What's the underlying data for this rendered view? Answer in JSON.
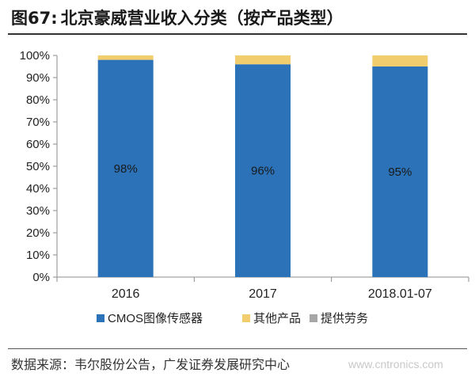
{
  "header": {
    "figure_label": "图67:",
    "title": "北京豪威营业收入分类（按产品类型）"
  },
  "footer": {
    "source": "数据来源：韦尔股份公告，广发证券发展研究中心",
    "watermark": "www.cntronics.com"
  },
  "colors": {
    "cmos": "#2b72b8",
    "other": "#f2cd6e",
    "service": "#a6a6a6"
  },
  "chart_data": {
    "type": "bar",
    "stacked": true,
    "categories": [
      "2016",
      "2017",
      "2018.01-07"
    ],
    "series": [
      {
        "name": "CMOS图像传感器",
        "values": [
          98,
          96,
          95
        ],
        "labels": [
          "98%",
          "96%",
          "95%"
        ],
        "color": "#2b72b8"
      },
      {
        "name": "其他产品",
        "values": [
          2,
          4,
          5
        ],
        "color": "#f2cd6e"
      },
      {
        "name": "提供劳务",
        "values": [
          0,
          0,
          0
        ],
        "color": "#a6a6a6"
      }
    ],
    "ylim": [
      0,
      100
    ],
    "yticks": [
      "0%",
      "10%",
      "20%",
      "30%",
      "40%",
      "50%",
      "60%",
      "70%",
      "80%",
      "90%",
      "100%"
    ],
    "grid": false,
    "legend_position": "bottom"
  }
}
